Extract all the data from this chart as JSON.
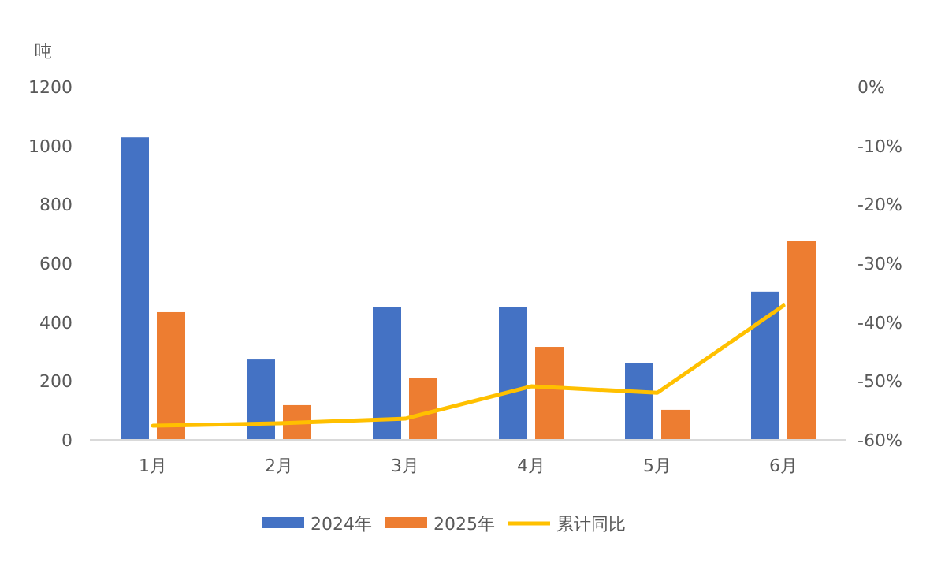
{
  "chart_data": {
    "type": "bar",
    "ylabel": "吨",
    "categories": [
      "1月",
      "2月",
      "3月",
      "4月",
      "5月",
      "6月"
    ],
    "series": [
      {
        "name": "2024年",
        "color": "#4472c4",
        "values": [
          1028,
          273,
          450,
          450,
          262,
          504
        ]
      },
      {
        "name": "2025年",
        "color": "#ed7d31",
        "values": [
          434,
          118,
          209,
          316,
          102,
          675
        ]
      },
      {
        "name": "累计同比",
        "type": "line",
        "axis": "y2",
        "color": "#ffc000",
        "values": [
          -57.6,
          -57.2,
          -56.4,
          -50.9,
          -52.0,
          -37.2
        ]
      }
    ],
    "ylim": [
      0,
      1200
    ],
    "yticks": [
      0,
      200,
      400,
      600,
      800,
      1000,
      1200
    ],
    "y2lim": [
      -60,
      0
    ],
    "y2ticks": [
      {
        "value": -60,
        "label": "-60%"
      },
      {
        "value": -50,
        "label": "-50%"
      },
      {
        "value": -40,
        "label": "-40%"
      },
      {
        "value": -30,
        "label": "-30%"
      },
      {
        "value": -20,
        "label": "-20%"
      },
      {
        "value": -10,
        "label": "-10%"
      },
      {
        "value": 0,
        "label": "0%"
      }
    ],
    "grid": false,
    "legend": "bottom"
  }
}
